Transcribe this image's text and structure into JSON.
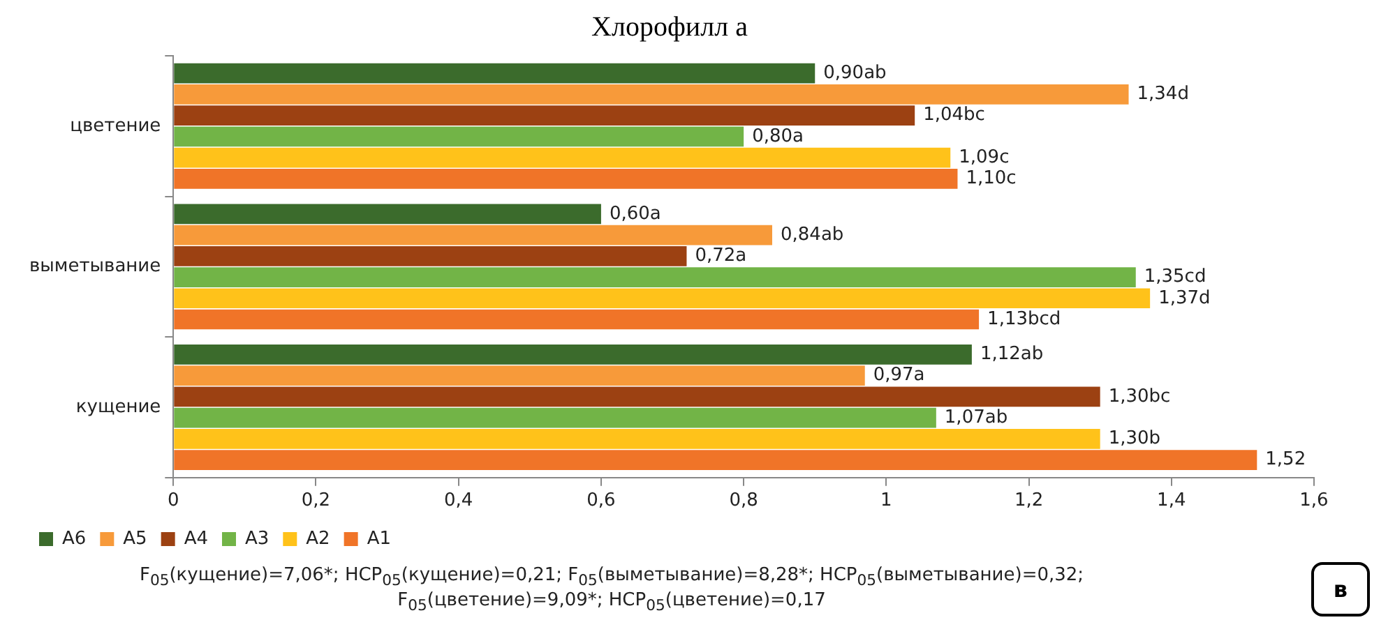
{
  "chart_data": {
    "type": "bar",
    "orientation": "horizontal",
    "title": "Хлорофилл a",
    "categories": [
      "цветение",
      "выметывание",
      "кущение"
    ],
    "series": [
      {
        "name": "A6",
        "color": "#3b6b2c",
        "values": [
          0.9,
          0.6,
          1.12
        ],
        "value_labels": [
          "0,90ab",
          "0,60a",
          "1,12ab"
        ]
      },
      {
        "name": "A5",
        "color": "#f79a3a",
        "values": [
          1.34,
          0.84,
          0.97
        ],
        "value_labels": [
          "1,34d",
          "0,84ab",
          "0,97a"
        ]
      },
      {
        "name": "A4",
        "color": "#9c4112",
        "values": [
          1.04,
          0.72,
          1.3
        ],
        "value_labels": [
          "1,04bc",
          "0,72a",
          "1,30bc"
        ]
      },
      {
        "name": "A3",
        "color": "#72b447",
        "values": [
          0.8,
          1.35,
          1.07
        ],
        "value_labels": [
          "0,80a",
          "1,35cd",
          "1,07ab"
        ]
      },
      {
        "name": "A2",
        "color": "#ffc21a",
        "values": [
          1.09,
          1.37,
          1.3
        ],
        "value_labels": [
          "1,09c",
          "1,37d",
          "1,30b"
        ]
      },
      {
        "name": "A1",
        "color": "#f07428",
        "values": [
          1.1,
          1.13,
          1.52
        ],
        "value_labels": [
          "1,10c",
          "1,13bcd",
          "1,52"
        ]
      }
    ],
    "xlim": [
      0,
      1.6
    ],
    "xticks": [
      0,
      {
        "value": 0.2,
        "label": "0,2"
      },
      {
        "value": 0.4,
        "label": "0,4"
      },
      {
        "value": 0.6,
        "label": "0,6"
      },
      {
        "value": 0.8,
        "label": "0,8"
      },
      1,
      {
        "value": 1.2,
        "label": "1,2"
      },
      {
        "value": 1.4,
        "label": "1,4"
      },
      {
        "value": 1.6,
        "label": "1,6"
      }
    ],
    "legend": "bottom left",
    "annotations": [
      "F$_{05}$(кущение)=7,06*; НСР$_{05}$(кущение)=0,21; F$_{05}$(выметывание)=8,28*; НСР$_{05}$(выметывание)=0,32; F$_{05}$(цветение)=9,09*; НСР$_{05}$(цветение)=0,17",
      "в"
    ]
  }
}
